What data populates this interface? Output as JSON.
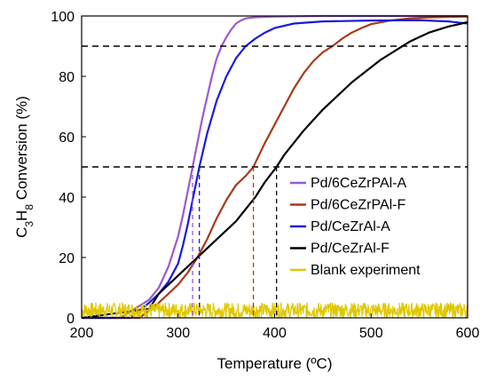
{
  "chart_data": {
    "type": "line",
    "xlabel": "Temperature (ºC)",
    "ylabel_parts": [
      "C",
      "3",
      "H",
      "8",
      " Conversion (%)"
    ],
    "xlim": [
      200,
      600
    ],
    "ylim": [
      0,
      100
    ],
    "xticks": [
      "200",
      "300",
      "400",
      "500",
      "600"
    ],
    "yticks": [
      "0",
      "20",
      "40",
      "60",
      "80",
      "100"
    ],
    "grid": false,
    "legend_position": "lower-right",
    "reference_lines": {
      "horizontal": [
        90,
        50
      ],
      "t50_markers": [
        {
          "x": 315,
          "color": "#9b59d0"
        },
        {
          "x": 322,
          "color": "#1a1adc"
        },
        {
          "x": 378,
          "color": "#a8391a"
        },
        {
          "x": 402,
          "color": "#000000"
        }
      ]
    },
    "series": [
      {
        "name": "Pd/6CeZrPAl-A",
        "color": "#9b59d0",
        "x": [
          200,
          240,
          260,
          270,
          280,
          290,
          300,
          305,
          310,
          315,
          320,
          325,
          330,
          335,
          340,
          345,
          350,
          355,
          360,
          365,
          370,
          380,
          400,
          450,
          500,
          550,
          600
        ],
        "y": [
          0,
          0,
          4,
          6,
          10,
          17,
          27,
          34,
          42,
          50,
          58,
          66,
          73,
          80,
          86,
          90,
          93,
          95.5,
          97.5,
          98.5,
          99.2,
          99.6,
          99.8,
          100,
          100,
          100,
          100
        ]
      },
      {
        "name": "Pd/6CeZrPAl-F",
        "color": "#a8391a",
        "x": [
          200,
          260,
          280,
          290,
          300,
          310,
          320,
          330,
          340,
          350,
          360,
          370,
          378,
          390,
          400,
          410,
          420,
          430,
          440,
          450,
          460,
          470,
          480,
          490,
          500,
          520,
          540,
          560,
          580,
          600
        ],
        "y": [
          0,
          0,
          5,
          8,
          11,
          15,
          20,
          26,
          33,
          39,
          44,
          47,
          50,
          58,
          64,
          70,
          76,
          81,
          85,
          88,
          90,
          92.5,
          94.5,
          96,
          97.3,
          98.5,
          99.2,
          99.5,
          99.7,
          99.8
        ]
      },
      {
        "name": "Pd/CeZrAl-A",
        "color": "#1a1adc",
        "x": [
          200,
          250,
          262,
          270,
          280,
          290,
          300,
          305,
          310,
          315,
          322,
          330,
          340,
          350,
          360,
          370,
          380,
          390,
          400,
          420,
          450,
          500,
          550,
          580,
          600
        ],
        "y": [
          0,
          0,
          3,
          5,
          8,
          12,
          18,
          24,
          31,
          39,
          50,
          61,
          72,
          80,
          86,
          90,
          92.5,
          94.5,
          96,
          97.5,
          98.2,
          98.5,
          98.6,
          98.2,
          97.5
        ]
      },
      {
        "name": "Pd/CeZrAl-F",
        "color": "#000000",
        "x": [
          200,
          270,
          280,
          290,
          300,
          310,
          320,
          330,
          340,
          350,
          360,
          370,
          380,
          390,
          402,
          410,
          420,
          430,
          440,
          450,
          460,
          470,
          480,
          490,
          500,
          510,
          520,
          530,
          540,
          550,
          560,
          570,
          580,
          590,
          600
        ],
        "y": [
          0,
          3,
          8,
          11,
          14,
          17,
          20,
          23,
          26,
          29,
          32,
          36,
          40,
          45,
          50,
          54,
          58,
          62,
          65.5,
          69,
          72,
          75,
          78,
          80.5,
          83,
          85.5,
          87.5,
          89.5,
          91.5,
          93,
          94.5,
          95.5,
          96.5,
          97.2,
          98
        ]
      },
      {
        "name": "Blank experiment",
        "color": "#e0c800",
        "x": [
          200,
          600
        ],
        "y": [
          2.5,
          2.5
        ],
        "noise": 2.5
      }
    ]
  }
}
